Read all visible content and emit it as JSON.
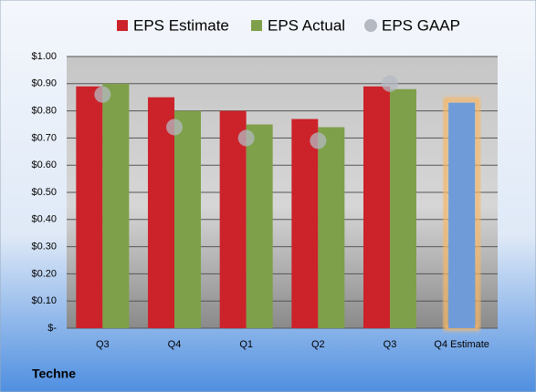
{
  "chart_data": {
    "type": "bar",
    "categories": [
      "Q3",
      "Q4",
      "Q1",
      "Q2",
      "Q3",
      "Q4 Estimate"
    ],
    "series": [
      {
        "name": "EPS Estimate",
        "color": "#cc2229",
        "values": [
          0.89,
          0.85,
          0.8,
          0.77,
          0.89,
          0.83
        ]
      },
      {
        "name": "EPS Actual",
        "color": "#7ea04a",
        "values": [
          0.9,
          0.8,
          0.75,
          0.74,
          0.88,
          null
        ]
      },
      {
        "name": "EPS GAAP",
        "color": "#b4b9c2",
        "marker": "circle",
        "values": [
          0.86,
          0.74,
          0.7,
          0.69,
          0.9,
          null
        ]
      }
    ],
    "highlight": {
      "index": 5,
      "color": "#6f9bd8",
      "glow": "#f5b86b"
    },
    "ylim": [
      0,
      1
    ],
    "yticks": [
      {
        "value": 0,
        "label": "$-"
      },
      {
        "value": 0.1,
        "label": "$0.10"
      },
      {
        "value": 0.2,
        "label": "$0.20"
      },
      {
        "value": 0.3,
        "label": "$0.30"
      },
      {
        "value": 0.4,
        "label": "$0.40"
      },
      {
        "value": 0.5,
        "label": "$0.50"
      },
      {
        "value": 0.6,
        "label": "$0.60"
      },
      {
        "value": 0.7,
        "label": "$0.70"
      },
      {
        "value": 0.8,
        "label": "$0.80"
      },
      {
        "value": 0.9,
        "label": "$0.90"
      },
      {
        "value": 1,
        "label": "$1.00"
      }
    ],
    "grid": true,
    "footer": "Techne"
  }
}
